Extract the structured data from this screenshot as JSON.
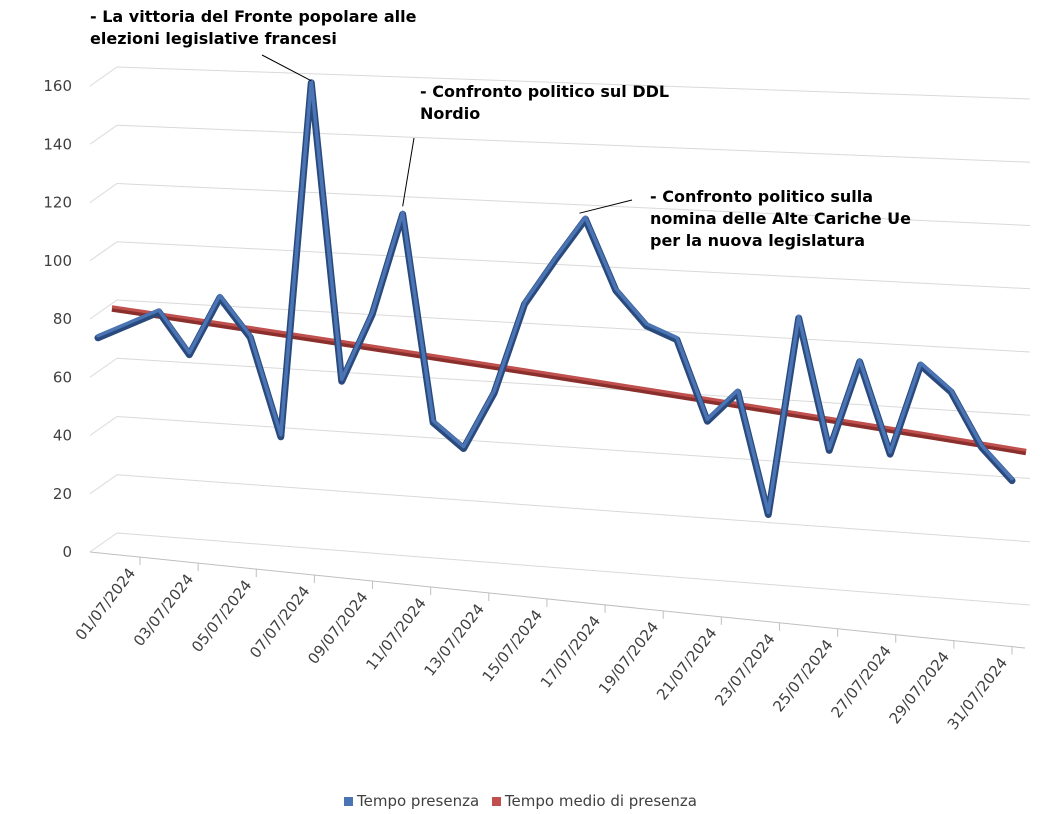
{
  "chart_data": {
    "type": "line",
    "x": [
      "01/07/2024",
      "02/07/2024",
      "03/07/2024",
      "04/07/2024",
      "05/07/2024",
      "06/07/2024",
      "07/07/2024",
      "08/07/2024",
      "09/07/2024",
      "10/07/2024",
      "11/07/2024",
      "12/07/2024",
      "13/07/2024",
      "14/07/2024",
      "15/07/2024",
      "16/07/2024",
      "17/07/2024",
      "18/07/2024",
      "19/07/2024",
      "20/07/2024",
      "21/07/2024",
      "22/07/2024",
      "23/07/2024",
      "24/07/2024",
      "25/07/2024",
      "26/07/2024",
      "27/07/2024",
      "28/07/2024",
      "29/07/2024",
      "30/07/2024",
      "31/07/2024"
    ],
    "tick_labels": [
      "01/07/2024",
      "03/07/2024",
      "05/07/2024",
      "07/07/2024",
      "09/07/2024",
      "11/07/2024",
      "13/07/2024",
      "15/07/2024",
      "17/07/2024",
      "19/07/2024",
      "21/07/2024",
      "23/07/2024",
      "25/07/2024",
      "27/07/2024",
      "29/07/2024",
      "31/07/2024"
    ],
    "series": [
      {
        "name": "Tempo presenza",
        "values": [
          67,
          72,
          77,
          63,
          83,
          70,
          37,
          157,
          57,
          80,
          114,
          45,
          37,
          56,
          86,
          101,
          115,
          92,
          81,
          77,
          51,
          61,
          22,
          86,
          44,
          73,
          44,
          73,
          65,
          48,
          38
        ],
        "color": "#4a74b4"
      },
      {
        "name": "Tempo medio di presenza",
        "values": [
          77,
          76,
          75,
          74,
          73,
          72,
          71,
          70,
          69,
          68,
          67,
          66,
          65,
          64,
          63,
          62,
          61,
          60,
          59,
          58,
          57,
          56,
          55,
          54,
          53,
          52,
          51,
          50,
          49,
          48,
          47
        ],
        "color": "#c0504d"
      }
    ],
    "ylim": [
      0,
      160
    ],
    "yticks": [
      0,
      20,
      40,
      60,
      80,
      100,
      120,
      140,
      160
    ],
    "grid": true,
    "legend": "bottom",
    "annotations": [
      {
        "point_index": 7,
        "lines": [
          "- La vittoria del Fronte popolare alle",
          "elezioni legislative francesi"
        ]
      },
      {
        "point_index": 10,
        "lines": [
          "- Confronto politico sul DDL",
          "Nordio"
        ]
      },
      {
        "point_index": 16,
        "lines": [
          "- Confronto politico sulla",
          "nomina delle Alte Cariche Ue",
          "per la nuova legislatura"
        ]
      }
    ]
  },
  "legend": {
    "items": [
      "Tempo presenza",
      "Tempo medio di presenza"
    ],
    "colors": [
      "#4a74b4",
      "#c0504d"
    ]
  }
}
